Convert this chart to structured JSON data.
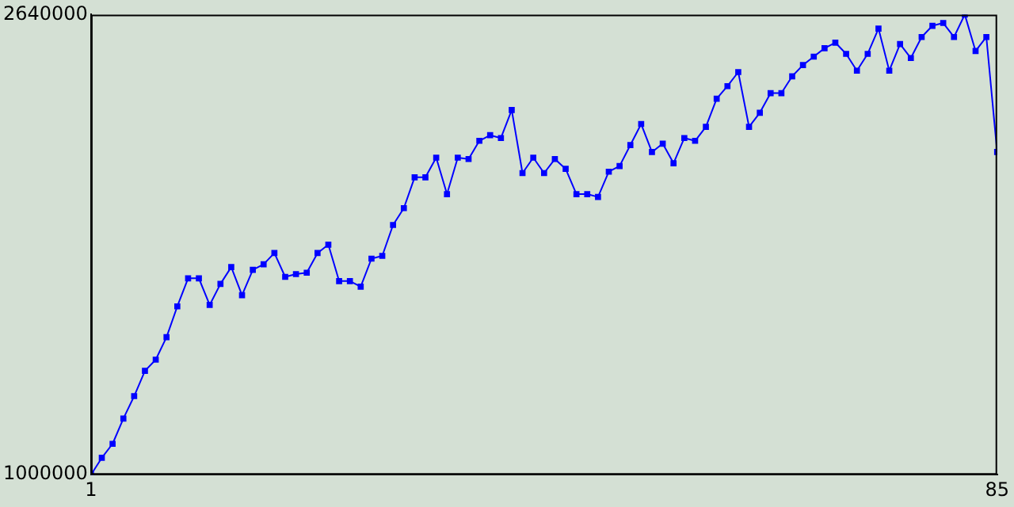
{
  "chart_data": {
    "type": "line",
    "x": [
      1,
      2,
      3,
      4,
      5,
      6,
      7,
      8,
      9,
      10,
      11,
      12,
      13,
      14,
      15,
      16,
      17,
      18,
      19,
      20,
      21,
      22,
      23,
      24,
      25,
      26,
      27,
      28,
      29,
      30,
      31,
      32,
      33,
      34,
      35,
      36,
      37,
      38,
      39,
      40,
      41,
      42,
      43,
      44,
      45,
      46,
      47,
      48,
      49,
      50,
      51,
      52,
      53,
      54,
      55,
      56,
      57,
      58,
      59,
      60,
      61,
      62,
      63,
      64,
      65,
      66,
      67,
      68,
      69,
      70,
      71,
      72,
      73,
      74,
      75,
      76,
      77,
      78,
      79,
      80,
      81,
      82,
      83,
      84,
      85
    ],
    "series": [
      {
        "color": "#0000ff",
        "values": [
          1000000,
          1060000,
          1110000,
          1200000,
          1280000,
          1370000,
          1410000,
          1490000,
          1600000,
          1700000,
          1700000,
          1605000,
          1680000,
          1740000,
          1640000,
          1730000,
          1750000,
          1790000,
          1705000,
          1715000,
          1720000,
          1790000,
          1820000,
          1690000,
          1690000,
          1670000,
          1770000,
          1780000,
          1890000,
          1950000,
          2060000,
          2060000,
          2130000,
          2000000,
          2130000,
          2125000,
          2190000,
          2210000,
          2200000,
          2300000,
          2075000,
          2130000,
          2075000,
          2125000,
          2090000,
          2000000,
          2000000,
          1990000,
          2080000,
          2100000,
          2175000,
          2250000,
          2150000,
          2180000,
          2110000,
          2200000,
          2190000,
          2240000,
          2340000,
          2385000,
          2435000,
          2240000,
          2290000,
          2360000,
          2360000,
          2420000,
          2460000,
          2490000,
          2520000,
          2540000,
          2500000,
          2440000,
          2500000,
          2590000,
          2440000,
          2535000,
          2485000,
          2560000,
          2600000,
          2610000,
          2560000,
          2640000,
          2510000,
          2560000,
          2150000
        ]
      }
    ],
    "xlim": [
      1,
      85
    ],
    "xticks": [
      1,
      85
    ],
    "ylim": [
      1000000,
      2640000
    ],
    "yticks": [
      1000000,
      2640000
    ],
    "grid": false,
    "legend": false,
    "marker": "square",
    "line_style": "solid"
  }
}
